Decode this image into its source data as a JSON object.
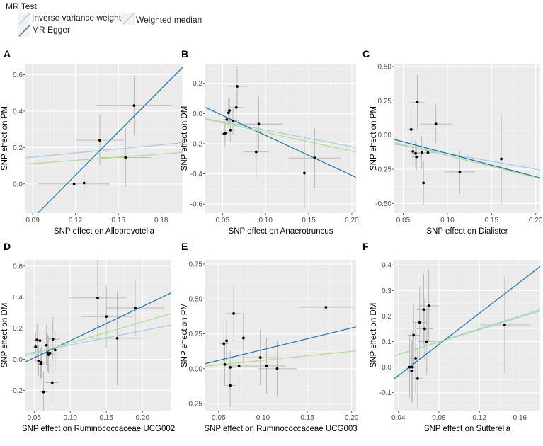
{
  "legend": {
    "title": "MR Test",
    "items": [
      {
        "label": "Inverse variance weighted",
        "color": "#a6cee3"
      },
      {
        "label": "MR Egger",
        "color": "#1f78b4"
      },
      {
        "label": "Weighted median",
        "color": "#b2df8a"
      }
    ]
  },
  "colors": {
    "panel_bg": "#ebebeb",
    "grid_major": "#ffffff",
    "point": "#000000",
    "errorbar": "#b3b3b3"
  },
  "chart_data": [
    {
      "type": "scatter",
      "panel": "A",
      "xlabel": "SNP effect on  Alloprevotella",
      "ylabel": "SNP effect on PM",
      "xlim": [
        0.085,
        0.195
      ],
      "ylim": [
        -0.16,
        0.66
      ],
      "xticks": [
        0.09,
        0.12,
        0.15,
        0.18
      ],
      "xtick_labels": [
        "0.09",
        "0.12",
        "0.15",
        "0.18"
      ],
      "yticks": [
        0.0,
        0.2,
        0.4,
        0.6
      ],
      "ytick_labels": [
        "0.0",
        "0.2",
        "0.4",
        "0.6"
      ],
      "points": [
        {
          "x": 0.119,
          "y": 0.0,
          "xerr": 0.025,
          "yerr": 0.08
        },
        {
          "x": 0.126,
          "y": 0.005,
          "xerr": 0.008,
          "yerr": 0.06
        },
        {
          "x": 0.137,
          "y": 0.24,
          "xerr": 0.017,
          "yerr": 0.14
        },
        {
          "x": 0.155,
          "y": 0.145,
          "xerr": 0.018,
          "yerr": 0.16
        },
        {
          "x": 0.161,
          "y": 0.43,
          "xerr": 0.027,
          "yerr": 0.16
        }
      ],
      "lines": [
        {
          "method": "Inverse variance weighted",
          "intercept": 0.08,
          "slope": 0.75
        },
        {
          "method": "MR Egger",
          "intercept": -0.9,
          "slope": 7.9
        },
        {
          "method": "Weighted median",
          "intercept": 0.06,
          "slope": 0.58
        }
      ]
    },
    {
      "type": "scatter",
      "panel": "B",
      "xlabel": "SNP effect on  Anaerotruncus",
      "ylabel": "SNP effect on DM",
      "xlim": [
        0.03,
        0.205
      ],
      "ylim": [
        -0.66,
        0.33
      ],
      "xticks": [
        0.05,
        0.1,
        0.15,
        0.2
      ],
      "xtick_labels": [
        "0.05",
        "0.10",
        "0.15",
        "0.20"
      ],
      "yticks": [
        0.2,
        0.0,
        -0.2,
        -0.4,
        -0.6
      ],
      "ytick_labels": [
        "0.2",
        "0.0",
        "-0.2",
        "-0.4",
        "-0.6"
      ],
      "points": [
        {
          "x": 0.052,
          "y": -0.135,
          "xerr": 0.004,
          "yerr": 0.1
        },
        {
          "x": 0.053,
          "y": -0.13,
          "xerr": 0.005,
          "yerr": 0.08
        },
        {
          "x": 0.055,
          "y": -0.04,
          "xerr": 0.005,
          "yerr": 0.1
        },
        {
          "x": 0.057,
          "y": 0.005,
          "xerr": 0.006,
          "yerr": 0.1
        },
        {
          "x": 0.058,
          "y": 0.02,
          "xerr": 0.005,
          "yerr": 0.08
        },
        {
          "x": 0.059,
          "y": -0.11,
          "xerr": 0.006,
          "yerr": 0.08
        },
        {
          "x": 0.062,
          "y": -0.05,
          "xerr": 0.007,
          "yerr": 0.09
        },
        {
          "x": 0.066,
          "y": 0.04,
          "xerr": 0.008,
          "yerr": 0.1
        },
        {
          "x": 0.067,
          "y": 0.18,
          "xerr": 0.012,
          "yerr": 0.13
        },
        {
          "x": 0.089,
          "y": -0.255,
          "xerr": 0.015,
          "yerr": 0.17
        },
        {
          "x": 0.092,
          "y": -0.07,
          "xerr": 0.028,
          "yerr": 0.18
        },
        {
          "x": 0.145,
          "y": -0.395,
          "xerr": 0.025,
          "yerr": 0.23
        },
        {
          "x": 0.157,
          "y": -0.295,
          "xerr": 0.03,
          "yerr": 0.2
        }
      ],
      "lines": [
        {
          "method": "Inverse variance weighted",
          "intercept": 0.0,
          "slope": -1.1
        },
        {
          "method": "MR Egger",
          "intercept": 0.12,
          "slope": -2.65
        },
        {
          "method": "Weighted median",
          "intercept": 0.0,
          "slope": -1.25
        }
      ]
    },
    {
      "type": "scatter",
      "panel": "C",
      "xlabel": "SNP effect on  Dialister",
      "ylabel": "SNP effect on PM",
      "xlim": [
        0.04,
        0.205
      ],
      "ylim": [
        -0.57,
        0.52
      ],
      "xticks": [
        0.05,
        0.1,
        0.15,
        0.2
      ],
      "xtick_labels": [
        "0.05",
        "0.10",
        "0.15",
        "0.20"
      ],
      "yticks": [
        0.5,
        0.25,
        0.0,
        -0.25,
        -0.5
      ],
      "ytick_labels": [
        "0.50",
        "0.25",
        "0.00",
        "-0.25",
        "-0.50"
      ],
      "points": [
        {
          "x": 0.059,
          "y": 0.04,
          "xerr": 0.004,
          "yerr": 0.14
        },
        {
          "x": 0.061,
          "y": -0.12,
          "xerr": 0.005,
          "yerr": 0.1
        },
        {
          "x": 0.064,
          "y": -0.135,
          "xerr": 0.005,
          "yerr": 0.1
        },
        {
          "x": 0.065,
          "y": -0.16,
          "xerr": 0.005,
          "yerr": 0.1
        },
        {
          "x": 0.066,
          "y": 0.24,
          "xerr": 0.008,
          "yerr": 0.2
        },
        {
          "x": 0.071,
          "y": -0.13,
          "xerr": 0.008,
          "yerr": 0.12
        },
        {
          "x": 0.073,
          "y": -0.35,
          "xerr": 0.012,
          "yerr": 0.16
        },
        {
          "x": 0.078,
          "y": -0.13,
          "xerr": 0.012,
          "yerr": 0.12
        },
        {
          "x": 0.087,
          "y": 0.08,
          "xerr": 0.018,
          "yerr": 0.14
        },
        {
          "x": 0.114,
          "y": -0.27,
          "xerr": 0.017,
          "yerr": 0.16
        },
        {
          "x": 0.161,
          "y": -0.175,
          "xerr": 0.035,
          "yerr": 0.33
        }
      ],
      "lines": [
        {
          "method": "Inverse variance weighted",
          "intercept": -0.02,
          "slope": -1.15
        },
        {
          "method": "MR Egger",
          "intercept": 0.035,
          "slope": -1.7
        },
        {
          "method": "Weighted median",
          "intercept": 0.01,
          "slope": -1.6
        }
      ]
    },
    {
      "type": "scatter",
      "panel": "D",
      "xlabel": "SNP effect on Ruminococcaceae UCG002",
      "ylabel": "SNP effect on DM",
      "xlim": [
        0.038,
        0.24
      ],
      "ylim": [
        -0.33,
        0.64
      ],
      "xticks": [
        0.05,
        0.1,
        0.15,
        0.2
      ],
      "xtick_labels": [
        "0.05",
        "0.10",
        "0.15",
        "0.20"
      ],
      "yticks": [
        0.6,
        0.4,
        0.2,
        0.0,
        -0.2
      ],
      "ytick_labels": [
        "0.6",
        "0.4",
        "0.2",
        "0.0",
        "-0.2"
      ],
      "points": [
        {
          "x": 0.052,
          "y": 0.08,
          "xerr": 0.004,
          "yerr": 0.1
        },
        {
          "x": 0.054,
          "y": 0.125,
          "xerr": 0.005,
          "yerr": 0.1
        },
        {
          "x": 0.056,
          "y": -0.01,
          "xerr": 0.005,
          "yerr": 0.1
        },
        {
          "x": 0.058,
          "y": 0.12,
          "xerr": 0.005,
          "yerr": 0.1
        },
        {
          "x": 0.059,
          "y": -0.03,
          "xerr": 0.005,
          "yerr": 0.1
        },
        {
          "x": 0.06,
          "y": -0.02,
          "xerr": 0.005,
          "yerr": 0.1
        },
        {
          "x": 0.063,
          "y": -0.21,
          "xerr": 0.006,
          "yerr": 0.13
        },
        {
          "x": 0.067,
          "y": 0.09,
          "xerr": 0.007,
          "yerr": 0.13
        },
        {
          "x": 0.069,
          "y": 0.04,
          "xerr": 0.007,
          "yerr": 0.12
        },
        {
          "x": 0.07,
          "y": 0.03,
          "xerr": 0.008,
          "yerr": 0.12
        },
        {
          "x": 0.072,
          "y": 0.04,
          "xerr": 0.01,
          "yerr": 0.13
        },
        {
          "x": 0.075,
          "y": -0.15,
          "xerr": 0.009,
          "yerr": 0.13
        },
        {
          "x": 0.076,
          "y": 0.13,
          "xerr": 0.01,
          "yerr": 0.14
        },
        {
          "x": 0.079,
          "y": 0.06,
          "xerr": 0.01,
          "yerr": 0.12
        },
        {
          "x": 0.138,
          "y": 0.395,
          "xerr": 0.04,
          "yerr": 0.25
        },
        {
          "x": 0.15,
          "y": 0.275,
          "xerr": 0.035,
          "yerr": 0.2
        },
        {
          "x": 0.165,
          "y": 0.135,
          "xerr": 0.035,
          "yerr": 0.3
        },
        {
          "x": 0.19,
          "y": 0.33,
          "xerr": 0.04,
          "yerr": 0.18
        }
      ],
      "lines": [
        {
          "method": "Inverse variance weighted",
          "intercept": 0.0,
          "slope": 0.92
        },
        {
          "method": "MR Egger",
          "intercept": -0.1,
          "slope": 2.2
        },
        {
          "method": "Weighted median",
          "intercept": -0.03,
          "slope": 1.35
        }
      ]
    },
    {
      "type": "scatter",
      "panel": "E",
      "xlabel": "SNP effect on  Ruminococcaceae UCG003",
      "ylabel": "SNP effect on PM",
      "xlim": [
        0.035,
        0.205
      ],
      "ylim": [
        -0.3,
        0.78
      ],
      "xticks": [
        0.05,
        0.1,
        0.15,
        0.2
      ],
      "xtick_labels": [
        "0.05",
        "0.10",
        "0.15",
        "0.20"
      ],
      "yticks": [
        0.75,
        0.5,
        0.25,
        0.0,
        -0.25
      ],
      "ytick_labels": [
        "0.75",
        "0.50",
        "0.25",
        "0.00",
        "-0.25"
      ],
      "points": [
        {
          "x": 0.056,
          "y": 0.18,
          "xerr": 0.005,
          "yerr": 0.15
        },
        {
          "x": 0.057,
          "y": 0.03,
          "xerr": 0.005,
          "yerr": 0.15
        },
        {
          "x": 0.059,
          "y": 0.2,
          "xerr": 0.006,
          "yerr": 0.15
        },
        {
          "x": 0.063,
          "y": -0.12,
          "xerr": 0.006,
          "yerr": 0.15
        },
        {
          "x": 0.063,
          "y": 0.01,
          "xerr": 0.007,
          "yerr": 0.12
        },
        {
          "x": 0.067,
          "y": 0.395,
          "xerr": 0.009,
          "yerr": 0.2
        },
        {
          "x": 0.073,
          "y": 0.02,
          "xerr": 0.012,
          "yerr": 0.18
        },
        {
          "x": 0.078,
          "y": 0.22,
          "xerr": 0.015,
          "yerr": 0.18
        },
        {
          "x": 0.097,
          "y": 0.08,
          "xerr": 0.02,
          "yerr": 0.2
        },
        {
          "x": 0.104,
          "y": 0.02,
          "xerr": 0.022,
          "yerr": 0.2
        },
        {
          "x": 0.116,
          "y": 0.0,
          "xerr": 0.022,
          "yerr": 0.2
        },
        {
          "x": 0.171,
          "y": 0.44,
          "xerr": 0.032,
          "yerr": 0.28
        }
      ],
      "lines": [
        {
          "method": "MR Egger",
          "intercept": -0.018,
          "slope": 1.55
        },
        {
          "method": "Weighted median",
          "intercept": -0.005,
          "slope": 0.65
        }
      ]
    },
    {
      "type": "scatter",
      "panel": "F",
      "xlabel": "SNP effect on Sutterella",
      "ylabel": "SNP effect on DM",
      "xlim": [
        0.036,
        0.18
      ],
      "ylim": [
        -0.17,
        0.42
      ],
      "xticks": [
        0.04,
        0.08,
        0.12,
        0.16
      ],
      "xtick_labels": [
        "0.04",
        "0.08",
        "0.12",
        "0.16"
      ],
      "yticks": [
        0.4,
        0.3,
        0.2,
        0.1,
        0.0,
        -0.1
      ],
      "ytick_labels": [
        "0.4",
        "0.3",
        "0.2",
        "0.1",
        "0.0",
        "-0.1"
      ],
      "points": [
        {
          "x": 0.051,
          "y": 0.0,
          "xerr": 0.004,
          "yerr": 0.12
        },
        {
          "x": 0.053,
          "y": -0.015,
          "xerr": 0.004,
          "yerr": 0.12
        },
        {
          "x": 0.054,
          "y": 0.0,
          "xerr": 0.005,
          "yerr": 0.14
        },
        {
          "x": 0.055,
          "y": 0.125,
          "xerr": 0.006,
          "yerr": 0.12
        },
        {
          "x": 0.057,
          "y": 0.035,
          "xerr": 0.006,
          "yerr": 0.14
        },
        {
          "x": 0.059,
          "y": -0.045,
          "xerr": 0.006,
          "yerr": 0.12
        },
        {
          "x": 0.061,
          "y": 0.175,
          "xerr": 0.007,
          "yerr": 0.14
        },
        {
          "x": 0.065,
          "y": 0.225,
          "xerr": 0.007,
          "yerr": 0.14
        },
        {
          "x": 0.066,
          "y": 0.15,
          "xerr": 0.008,
          "yerr": 0.12
        },
        {
          "x": 0.068,
          "y": 0.1,
          "xerr": 0.009,
          "yerr": 0.13
        },
        {
          "x": 0.07,
          "y": 0.24,
          "xerr": 0.01,
          "yerr": 0.14
        },
        {
          "x": 0.145,
          "y": 0.165,
          "xerr": 0.025,
          "yerr": 0.19
        }
      ],
      "lines": [
        {
          "method": "Inverse variance weighted",
          "intercept": 0.0,
          "slope": 1.25
        },
        {
          "method": "MR Egger",
          "intercept": -0.155,
          "slope": 3.05
        },
        {
          "method": "Weighted median",
          "intercept": 0.0,
          "slope": 1.22
        }
      ]
    }
  ]
}
